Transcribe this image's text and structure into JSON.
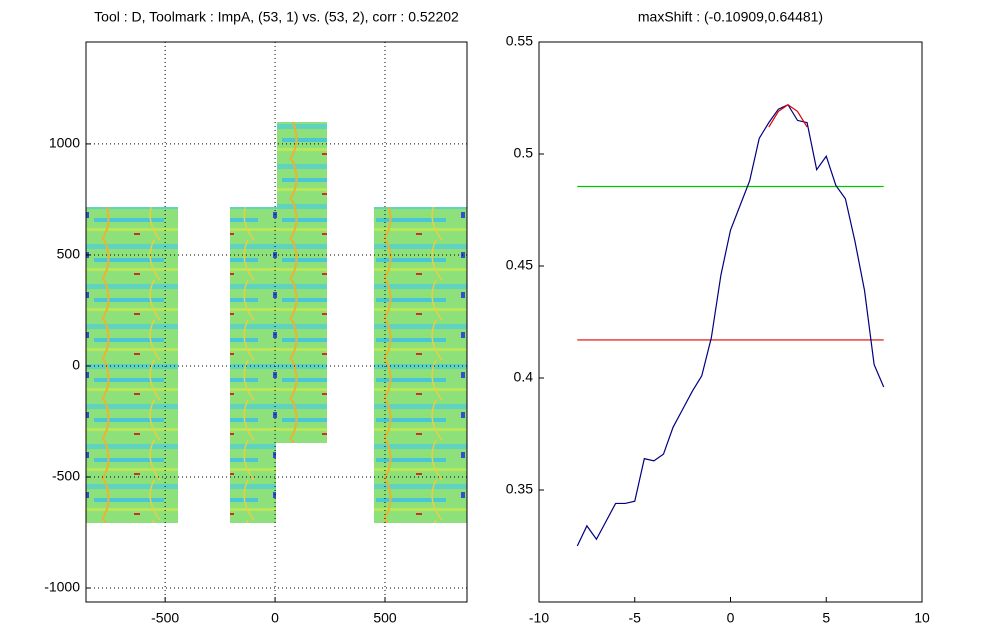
{
  "chart_data": [
    {
      "type": "image",
      "title": "Tool : D, Toolmark : ImpA, (53, 1) vs. (53, 2), corr : 0.52202",
      "xlim": [
        -860,
        873
      ],
      "ylim": [
        -1063,
        1459
      ],
      "xticks": [
        -500,
        0,
        500
      ],
      "yticks": [
        -1000,
        -500,
        0,
        500,
        1000
      ],
      "grid": true
    },
    {
      "type": "line",
      "title": "maxShift : (-0.10909,0.64481)",
      "xlim": [
        -10,
        10
      ],
      "ylim": [
        0.3,
        0.55
      ],
      "xticks": [
        -10,
        -5,
        0,
        5,
        10
      ],
      "yticks": [
        0.35,
        0.4,
        0.45,
        0.5,
        0.55
      ],
      "grid": false,
      "series": [
        {
          "color": "#00c800",
          "x": [
            -8,
            8
          ],
          "values": [
            0.4855,
            0.4855
          ]
        },
        {
          "color": "#e00000",
          "x": [
            -8,
            8
          ],
          "values": [
            0.417,
            0.417
          ]
        },
        {
          "color": "#000080",
          "x": [
            -8,
            -7.5,
            -7,
            -6.5,
            -6,
            -5.5,
            -5,
            -4.5,
            -4,
            -3.5,
            -3,
            -2.5,
            -2,
            -1.5,
            -1,
            -0.5,
            0,
            0.5,
            1,
            1.5,
            2,
            2.5,
            3,
            3.5,
            4,
            4.5,
            5,
            5.5,
            6,
            6.5,
            7,
            7.5,
            8
          ],
          "values": [
            0.325,
            0.334,
            0.328,
            0.336,
            0.344,
            0.344,
            0.345,
            0.364,
            0.363,
            0.366,
            0.378,
            0.386,
            0.394,
            0.401,
            0.418,
            0.446,
            0.466,
            0.477,
            0.488,
            0.507,
            0.514,
            0.52,
            0.522,
            0.515,
            0.514,
            0.493,
            0.499,
            0.486,
            0.48,
            0.461,
            0.439,
            0.406,
            0.396
          ]
        },
        {
          "color": "#e00000",
          "x": [
            2,
            2.5,
            3,
            3.5,
            4
          ],
          "values": [
            0.512,
            0.519,
            0.522,
            0.519,
            0.512
          ]
        }
      ]
    }
  ]
}
